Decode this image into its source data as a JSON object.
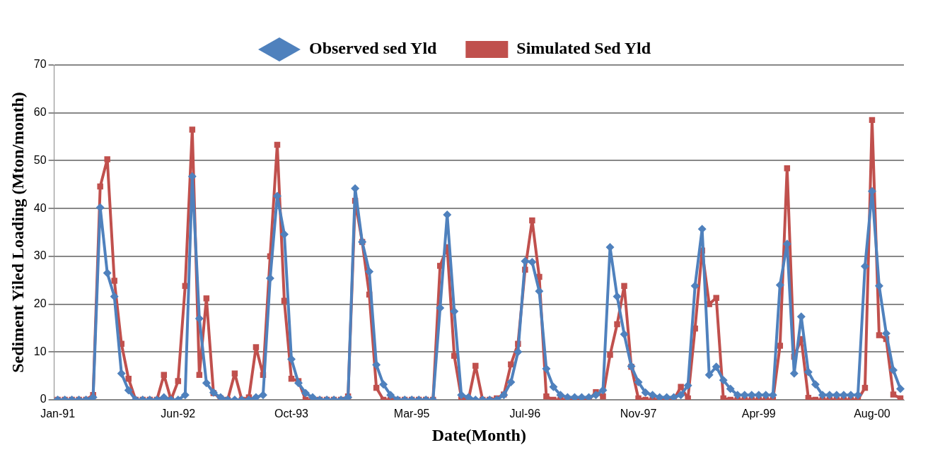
{
  "chart_data": {
    "type": "line",
    "xlabel": "Date(Month)",
    "ylabel": "Sediment Yiled Loading (Mton/month)",
    "categories": [
      "Jan-91",
      null,
      null,
      null,
      null,
      null,
      null,
      null,
      null,
      null,
      null,
      null,
      null,
      null,
      null,
      null,
      null,
      "Jun-92",
      null,
      null,
      null,
      null,
      null,
      null,
      null,
      null,
      null,
      null,
      null,
      null,
      null,
      null,
      null,
      "Oct-93",
      null,
      null,
      null,
      null,
      null,
      null,
      null,
      null,
      null,
      null,
      null,
      null,
      null,
      null,
      null,
      null,
      "Mar-95",
      null,
      null,
      null,
      null,
      null,
      null,
      null,
      null,
      null,
      null,
      null,
      null,
      null,
      null,
      null,
      "Jul-96",
      null,
      null,
      null,
      null,
      null,
      null,
      null,
      null,
      null,
      null,
      null,
      null,
      null,
      null,
      null,
      "Nov-97",
      null,
      null,
      null,
      null,
      null,
      null,
      null,
      null,
      null,
      null,
      null,
      null,
      null,
      null,
      null,
      null,
      "Apr-99",
      null,
      null,
      null,
      null,
      null,
      null,
      null,
      null,
      null,
      null,
      null,
      null,
      null,
      null,
      null,
      "Aug-00",
      null,
      null,
      null,
      null
    ],
    "series": [
      {
        "name": "Observed sed Yld",
        "color": "#4f81bd",
        "marker": "diamond",
        "values": [
          0,
          0,
          0,
          0,
          0,
          0.5,
          40.2,
          26.5,
          21.6,
          5.5,
          2,
          0,
          0,
          0,
          0,
          0.5,
          0,
          0,
          1,
          46.7,
          17,
          3.5,
          1.5,
          0.5,
          0,
          0,
          0,
          0,
          0.5,
          1,
          25.4,
          42.6,
          34.6,
          8.5,
          3.5,
          1.4,
          0.5,
          0,
          0,
          0,
          0,
          0.5,
          44.2,
          33,
          26.8,
          7.3,
          3.2,
          1,
          0,
          0,
          0,
          0,
          0,
          0,
          19.2,
          38.7,
          18.5,
          1,
          0.5,
          0,
          0,
          0,
          0,
          1,
          3.7,
          10,
          29,
          28.8,
          22.7,
          6.5,
          2.7,
          1,
          0.5,
          0.5,
          0.5,
          0.5,
          1,
          2,
          31.9,
          21.6,
          13.7,
          7,
          3.7,
          1.5,
          1,
          0.5,
          0.5,
          0.5,
          1,
          3,
          23.8,
          35.7,
          5.2,
          6.9,
          4.1,
          2.3,
          1,
          1,
          1,
          1,
          1,
          1,
          24,
          32.6,
          5.5,
          17.4,
          5.8,
          3.2,
          1,
          1,
          1,
          1,
          1,
          1,
          27.9,
          43.6,
          23.8,
          13.9,
          6.2,
          2.3
        ]
      },
      {
        "name": "Simulated Sed Yld",
        "color": "#c0504d",
        "marker": "square",
        "values": [
          0,
          0,
          0,
          0,
          0,
          1,
          44.6,
          50.3,
          24.9,
          11.7,
          4.4,
          0,
          0,
          0,
          0,
          5.2,
          0,
          3.9,
          23.8,
          56.5,
          5.2,
          21.2,
          1.4,
          0.3,
          0,
          5.5,
          0,
          0.5,
          11,
          5.2,
          30,
          53.3,
          20.7,
          4.4,
          3.9,
          0,
          0,
          0,
          0,
          0,
          0,
          0.7,
          41.6,
          33,
          22,
          2.5,
          0,
          0,
          0,
          0,
          0,
          0,
          0,
          0,
          28,
          31.9,
          9.2,
          0.4,
          0,
          7.1,
          0,
          0,
          0.3,
          1.1,
          7.4,
          11.7,
          27.2,
          37.5,
          25.7,
          0.7,
          0,
          0,
          0,
          0,
          0,
          0,
          1.6,
          0.7,
          9.4,
          15.8,
          23.8,
          6.9,
          0.3,
          0,
          0,
          0,
          0,
          0,
          2.7,
          0.3,
          14.9,
          31.2,
          20,
          21.3,
          0.3,
          0,
          0,
          0,
          0,
          0,
          0,
          0,
          11.3,
          48.4,
          9,
          12.7,
          0.4,
          0,
          0,
          0,
          0,
          0,
          0,
          0,
          2.5,
          58.5,
          13.5,
          12.7,
          1.1,
          0.3
        ]
      }
    ],
    "ylim": [
      0,
      70
    ],
    "yticks": [
      0,
      10,
      20,
      30,
      40,
      50,
      60,
      70
    ],
    "grid": "y",
    "legend": "top",
    "line_style": "solid"
  }
}
